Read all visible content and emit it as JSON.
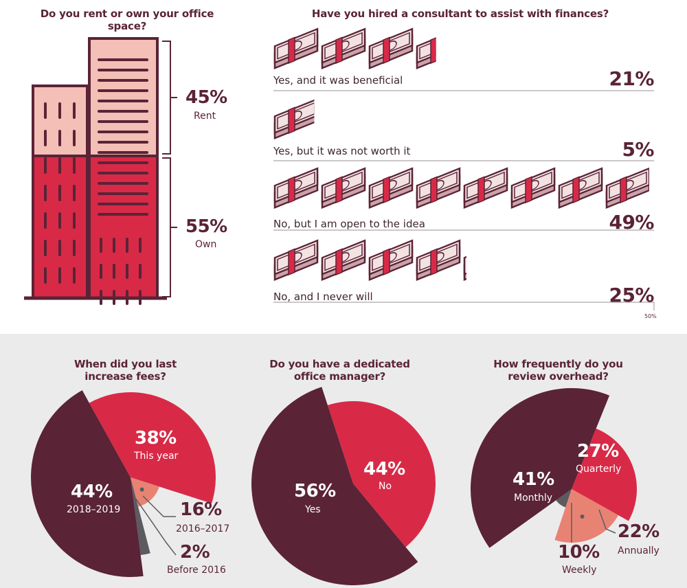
{
  "colors": {
    "maroon": "#5a2336",
    "red": "#d82a47",
    "pink": "#f3bfb6",
    "salmon": "#e88373",
    "gray": "#5b5b60"
  },
  "chart_data": [
    {
      "type": "bar",
      "title": "Do you rent or own your office space?",
      "categories": [
        "Rent",
        "Own"
      ],
      "values": [
        45,
        55
      ],
      "labels": [
        "45%",
        "55%"
      ]
    },
    {
      "type": "bar",
      "title": "Have you hired a consultant to assist with finances?",
      "categories": [
        "Yes, and it was beneficial",
        "Yes, but it was not worth it",
        "No, but I am open to the idea",
        "No, and I never will"
      ],
      "values": [
        21,
        5,
        49,
        25
      ],
      "labels": [
        "21%",
        "5%",
        "49%",
        "25%"
      ],
      "axis_max_label": "50%",
      "xlim": [
        0,
        50
      ]
    },
    {
      "type": "pie",
      "title_lines": [
        "When did you last",
        "increase fees?"
      ],
      "slices": [
        {
          "name": "This year",
          "value": 38,
          "label": "38%"
        },
        {
          "name": "2016–2017",
          "value": 16,
          "label": "16%"
        },
        {
          "name": "Before 2016",
          "value": 2,
          "label": "2%"
        },
        {
          "name": "2018–2019",
          "value": 44,
          "label": "44%"
        }
      ]
    },
    {
      "type": "pie",
      "title_lines": [
        "Do you have a dedicated",
        "office manager?"
      ],
      "slices": [
        {
          "name": "No",
          "value": 44,
          "label": "44%"
        },
        {
          "name": "Yes",
          "value": 56,
          "label": "56%"
        }
      ]
    },
    {
      "type": "pie",
      "title_lines": [
        "How frequently do you",
        "review overhead?"
      ],
      "slices": [
        {
          "name": "Quarterly",
          "value": 27,
          "label": "27%"
        },
        {
          "name": "Annually",
          "value": 22,
          "label": "22%"
        },
        {
          "name": "Weekly",
          "value": 10,
          "label": "10%"
        },
        {
          "name": "Monthly",
          "value": 41,
          "label": "41%"
        }
      ]
    }
  ]
}
